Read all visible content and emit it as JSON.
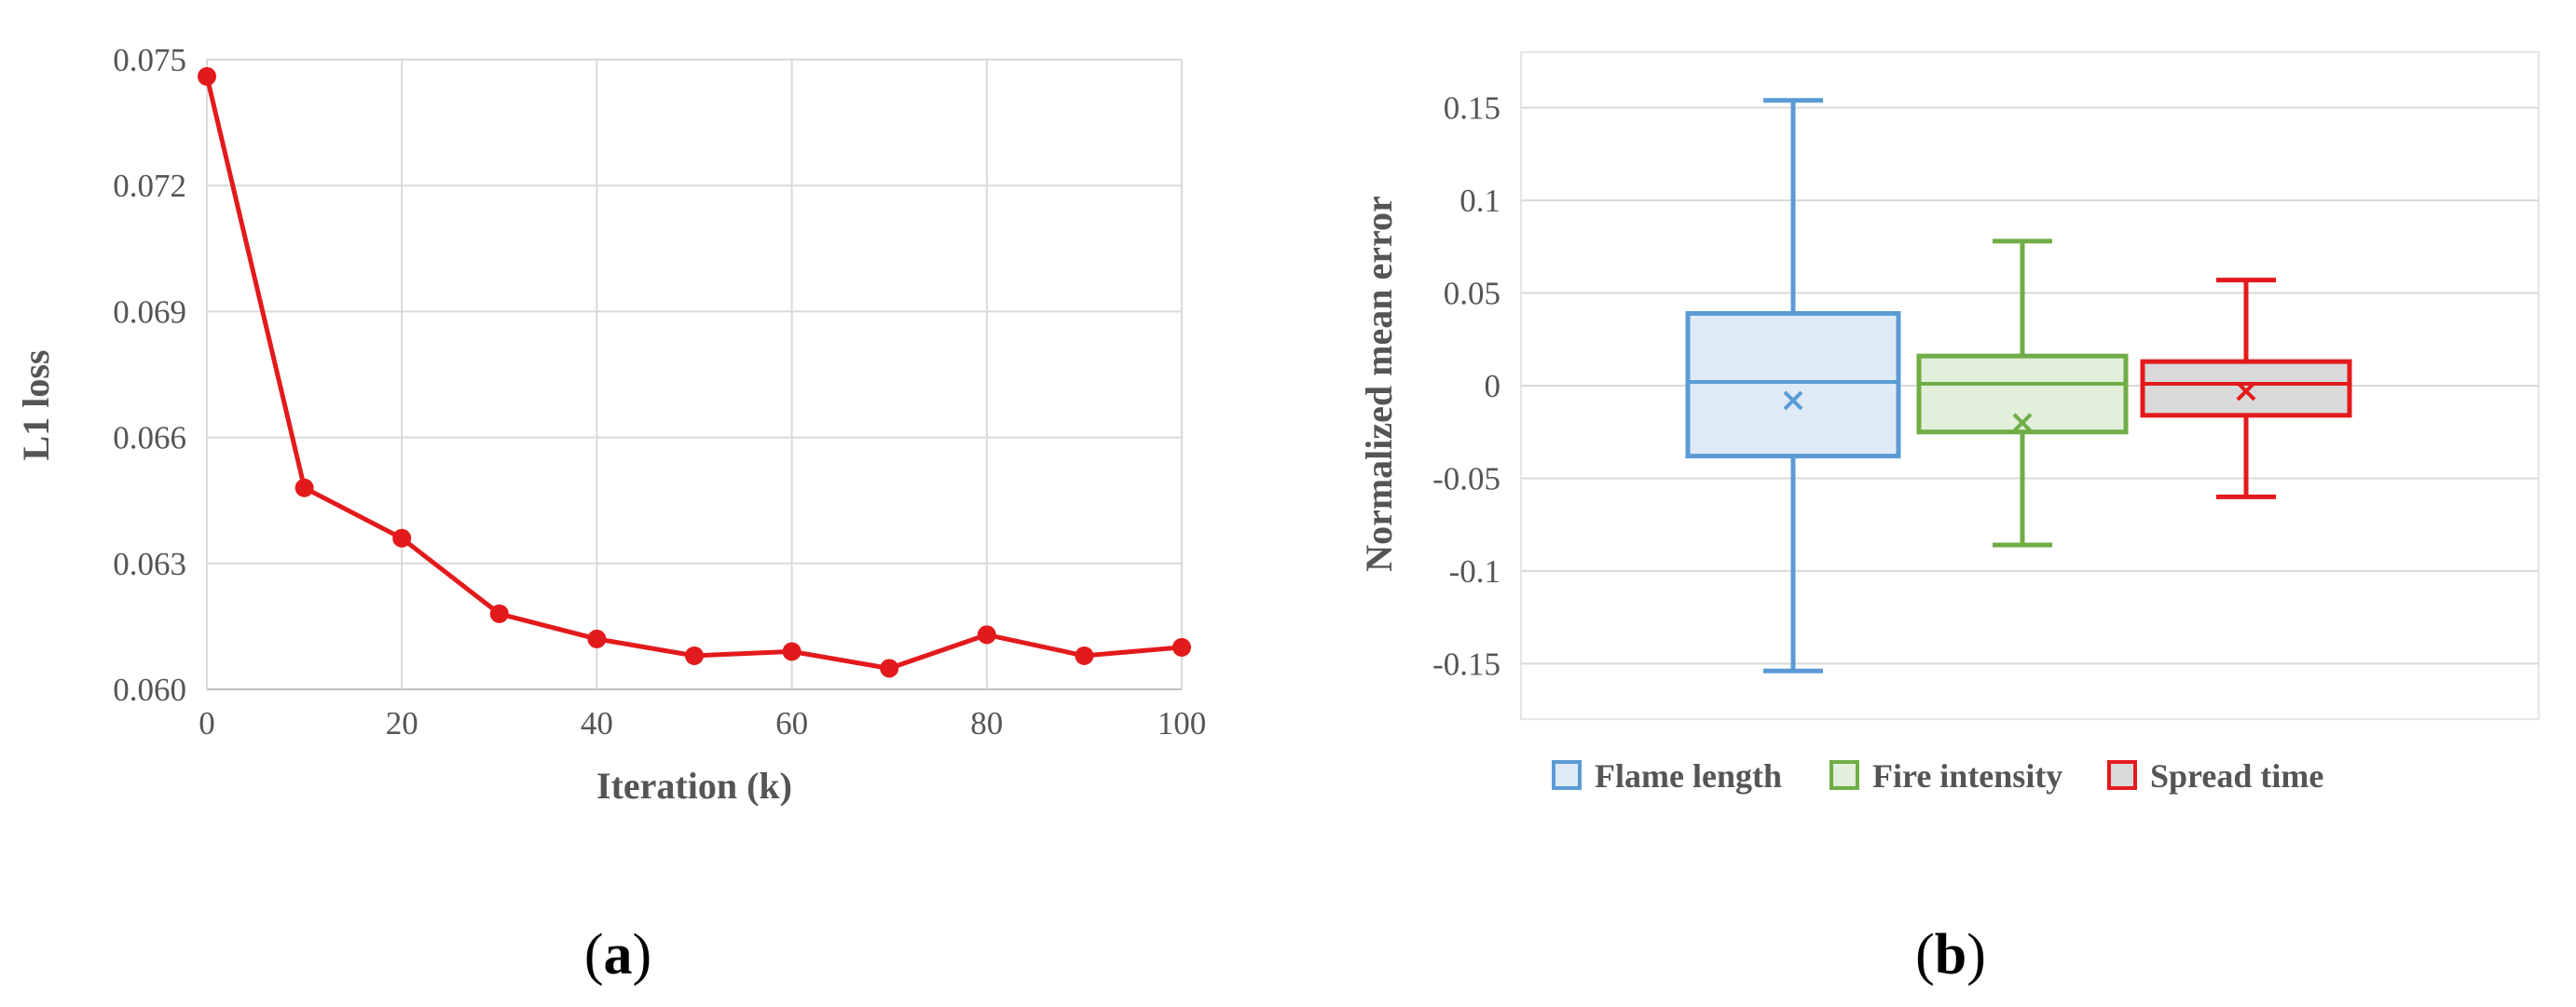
{
  "panels": {
    "a": {
      "open": "(",
      "letter": "a",
      "close": ")"
    },
    "b": {
      "open": "(",
      "letter": "b",
      "close": ")"
    }
  },
  "chart_data": [
    {
      "type": "line",
      "xlabel": "Iteration (k)",
      "ylabel": "L1 loss",
      "x": [
        0,
        10,
        20,
        30,
        40,
        50,
        60,
        70,
        80,
        90,
        100
      ],
      "series": [
        {
          "values": [
            0.0746,
            0.0648,
            0.0636,
            0.0618,
            0.0612,
            0.0608,
            0.0609,
            0.0605,
            0.0613,
            0.0608,
            0.061
          ],
          "color": "#e31a1c"
        }
      ],
      "xlim": [
        0,
        100
      ],
      "ylim": [
        0.06,
        0.075
      ],
      "xticks": [
        0,
        20,
        40,
        60,
        80,
        100
      ],
      "xtick_labels": [
        "0",
        "20",
        "40",
        "60",
        "80",
        "100"
      ],
      "yticks": [
        0.06,
        0.063,
        0.066,
        0.069,
        0.072,
        0.075
      ],
      "ytick_labels": [
        "0.060",
        "0.063",
        "0.066",
        "0.069",
        "0.072",
        "0.075"
      ],
      "grid": true
    },
    {
      "type": "box",
      "ylabel": "Normalized mean error",
      "ylim": [
        -0.18,
        0.18
      ],
      "yticks": [
        -0.15,
        -0.1,
        -0.05,
        0,
        0.05,
        0.1,
        0.15
      ],
      "ytick_labels": [
        "-0.15",
        "-0.1",
        "-0.05",
        "0",
        "0.05",
        "0.1",
        "0.15"
      ],
      "grid": true,
      "legend_position": "bottom",
      "series": [
        {
          "name": "Flame length",
          "color": "#5b9bd5",
          "fill": "#deebf7",
          "whisker_low": -0.154,
          "q1": -0.038,
          "median": 0.002,
          "q3": 0.039,
          "whisker_high": 0.154,
          "mean": -0.008
        },
        {
          "name": "Fire intensity",
          "color": "#70ad47",
          "fill": "#e2efda",
          "whisker_low": -0.086,
          "q1": -0.025,
          "median": 0.001,
          "q3": 0.016,
          "whisker_high": 0.078,
          "mean": -0.02
        },
        {
          "name": "Spread time",
          "color": "#e31a1c",
          "fill": "#d9d9d9",
          "whisker_low": -0.06,
          "q1": -0.016,
          "median": 0.001,
          "q3": 0.013,
          "whisker_high": 0.057,
          "mean": -0.003
        }
      ]
    }
  ]
}
